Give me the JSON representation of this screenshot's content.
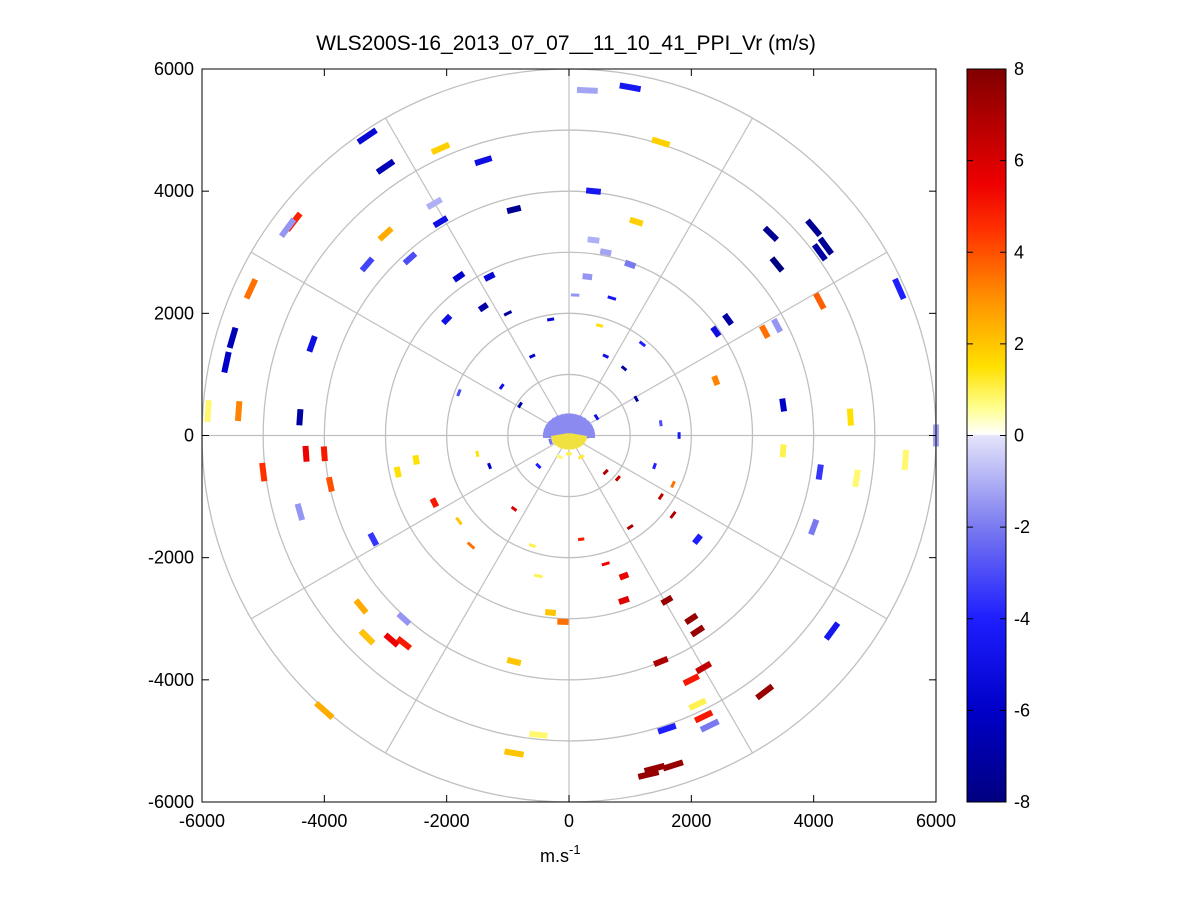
{
  "chart_data": {
    "type": "scatter",
    "subtype": "polar-ppi-radial-velocity",
    "title": "WLS200S-16_2013_07_07__11_10_41_PPI_Vr (m/s)",
    "xlabel_base": "m.s",
    "xlabel_exp": "-1",
    "ylabel": "",
    "xlim": [
      -6000,
      6000
    ],
    "ylim": [
      -6000,
      6000
    ],
    "xticks": [
      -6000,
      -4000,
      -2000,
      0,
      2000,
      4000,
      6000
    ],
    "yticks": [
      -6000,
      -4000,
      -2000,
      0,
      2000,
      4000,
      6000
    ],
    "x_tick_labels": [
      "-6000",
      "-4000",
      "-2000",
      "0",
      "2000",
      "4000",
      "6000"
    ],
    "y_tick_labels": [
      "-6000",
      "-4000",
      "-2000",
      "0",
      "2000",
      "4000",
      "6000"
    ],
    "range_rings": [
      1000,
      2000,
      3000,
      4000,
      5000,
      6000
    ],
    "spoke_angles_deg": [
      0,
      30,
      60,
      90,
      120,
      150,
      180,
      210,
      240,
      270,
      300,
      330
    ],
    "colorbar": {
      "min": -8,
      "max": 8,
      "ticks": [
        -8,
        -6,
        -4,
        -2,
        0,
        2,
        4,
        6,
        8
      ],
      "tick_labels": [
        "-8",
        "-6",
        "-4",
        "-2",
        "0",
        "2",
        "4",
        "6",
        "8"
      ],
      "colormap_stops": [
        {
          "v": -8,
          "color": "#000080"
        },
        {
          "v": -6,
          "color": "#0000c8"
        },
        {
          "v": -4,
          "color": "#1e1eff"
        },
        {
          "v": -2,
          "color": "#7a7af0"
        },
        {
          "v": 0,
          "color": "#e4e4fa"
        },
        {
          "v": 0.02,
          "color": "#ffffff"
        },
        {
          "v": 0.6,
          "color": "#ffff90"
        },
        {
          "v": 1.5,
          "color": "#ffe000"
        },
        {
          "v": 3,
          "color": "#ff9000"
        },
        {
          "v": 4.5,
          "color": "#ff3000"
        },
        {
          "v": 5.5,
          "color": "#ee0000"
        },
        {
          "v": 8,
          "color": "#800000"
        }
      ]
    },
    "points": [
      {
        "x": 300,
        "y": 5650,
        "v": -1.2
      },
      {
        "x": 1000,
        "y": 5700,
        "v": -4.5
      },
      {
        "x": 1500,
        "y": 4800,
        "v": 1.8
      },
      {
        "x": -3300,
        "y": 4900,
        "v": -5.5
      },
      {
        "x": -2100,
        "y": 4700,
        "v": 1.8
      },
      {
        "x": -3000,
        "y": 4400,
        "v": -6.5
      },
      {
        "x": -1400,
        "y": 4500,
        "v": -5.0
      },
      {
        "x": 400,
        "y": 4000,
        "v": -4.5
      },
      {
        "x": -2200,
        "y": 3800,
        "v": -1.0
      },
      {
        "x": -900,
        "y": 3700,
        "v": -7.5
      },
      {
        "x": -2100,
        "y": 3500,
        "v": -5.0
      },
      {
        "x": 1100,
        "y": 3500,
        "v": 1.8
      },
      {
        "x": -4500,
        "y": 3500,
        "v": 4.8
      },
      {
        "x": -4600,
        "y": 3400,
        "v": -1.5
      },
      {
        "x": -3000,
        "y": 3300,
        "v": 2.5
      },
      {
        "x": 4000,
        "y": 3400,
        "v": -7.5
      },
      {
        "x": 3300,
        "y": 3300,
        "v": -7.5
      },
      {
        "x": 4200,
        "y": 3100,
        "v": -7.5
      },
      {
        "x": 400,
        "y": 3200,
        "v": -1.0
      },
      {
        "x": 600,
        "y": 3000,
        "v": -1.2
      },
      {
        "x": -2600,
        "y": 2900,
        "v": -3.0
      },
      {
        "x": 4100,
        "y": 3000,
        "v": -7.0
      },
      {
        "x": 3400,
        "y": 2800,
        "v": -8.0
      },
      {
        "x": -3300,
        "y": 2800,
        "v": -3.2
      },
      {
        "x": 1000,
        "y": 2800,
        "v": -2.0
      },
      {
        "x": 300,
        "y": 2600,
        "v": -1.5
      },
      {
        "x": -1800,
        "y": 2600,
        "v": -5.8
      },
      {
        "x": -1300,
        "y": 2600,
        "v": -5.5
      },
      {
        "x": 100,
        "y": 2300,
        "v": -1.5
      },
      {
        "x": 700,
        "y": 2250,
        "v": -4.5
      },
      {
        "x": -5200,
        "y": 2400,
        "v": 3.5
      },
      {
        "x": 5400,
        "y": 2400,
        "v": -4.0
      },
      {
        "x": 4100,
        "y": 2200,
        "v": 3.8
      },
      {
        "x": 3400,
        "y": 1800,
        "v": -1.5
      },
      {
        "x": 3200,
        "y": 1700,
        "v": 3.5
      },
      {
        "x": 2600,
        "y": 1900,
        "v": -7.0
      },
      {
        "x": 2400,
        "y": 1700,
        "v": -5.0
      },
      {
        "x": -1400,
        "y": 2100,
        "v": -7.0
      },
      {
        "x": -1000,
        "y": 2000,
        "v": -7.0
      },
      {
        "x": -2000,
        "y": 1900,
        "v": -5.0
      },
      {
        "x": -5500,
        "y": 1600,
        "v": -6.5
      },
      {
        "x": -5600,
        "y": 1200,
        "v": -6.0
      },
      {
        "x": -4200,
        "y": 1500,
        "v": -5.0
      },
      {
        "x": 2400,
        "y": 900,
        "v": 3.2
      },
      {
        "x": 3500,
        "y": 500,
        "v": -6.0
      },
      {
        "x": 4600,
        "y": 300,
        "v": 1.5
      },
      {
        "x": -5900,
        "y": 400,
        "v": 0.8
      },
      {
        "x": -5400,
        "y": 400,
        "v": 3.2
      },
      {
        "x": -4400,
        "y": 300,
        "v": -7.0
      },
      {
        "x": 6000,
        "y": 0,
        "v": -1.2
      },
      {
        "x": 5500,
        "y": -400,
        "v": 0.8
      },
      {
        "x": 3500,
        "y": -250,
        "v": 1.0
      },
      {
        "x": 4700,
        "y": -700,
        "v": 0.8
      },
      {
        "x": 4100,
        "y": -600,
        "v": -3.5
      },
      {
        "x": -5000,
        "y": -600,
        "v": 4.5
      },
      {
        "x": -4300,
        "y": -300,
        "v": 5.5
      },
      {
        "x": -4000,
        "y": -300,
        "v": 5.0
      },
      {
        "x": -3900,
        "y": -800,
        "v": 4.0
      },
      {
        "x": -2800,
        "y": -600,
        "v": 1.5
      },
      {
        "x": -2500,
        "y": -400,
        "v": 1.5
      },
      {
        "x": -2200,
        "y": -1100,
        "v": 5.0
      },
      {
        "x": -4400,
        "y": -1250,
        "v": -1.5
      },
      {
        "x": -3200,
        "y": -1700,
        "v": -3.5
      },
      {
        "x": -1600,
        "y": -1800,
        "v": 3.5
      },
      {
        "x": 4000,
        "y": -1500,
        "v": -2.0
      },
      {
        "x": 2100,
        "y": -1700,
        "v": -4.0
      },
      {
        "x": 1700,
        "y": -1300,
        "v": 7.0
      },
      {
        "x": 1500,
        "y": -1000,
        "v": 6.5
      },
      {
        "x": -500,
        "y": -2300,
        "v": 1.0
      },
      {
        "x": 600,
        "y": -2100,
        "v": 5.5
      },
      {
        "x": 900,
        "y": -2300,
        "v": 5.5
      },
      {
        "x": 900,
        "y": -2700,
        "v": 5.8
      },
      {
        "x": -300,
        "y": -2900,
        "v": 2.0
      },
      {
        "x": -100,
        "y": -3050,
        "v": 3.5
      },
      {
        "x": 1600,
        "y": -2700,
        "v": 7.5
      },
      {
        "x": 2000,
        "y": -3000,
        "v": 7.5
      },
      {
        "x": 2100,
        "y": -3200,
        "v": 7.5
      },
      {
        "x": -3400,
        "y": -2800,
        "v": 2.5
      },
      {
        "x": -2700,
        "y": -3000,
        "v": -1.5
      },
      {
        "x": -3300,
        "y": -3300,
        "v": 5.5
      },
      {
        "x": -2900,
        "y": -3350,
        "v": 5.5
      },
      {
        "x": -3300,
        "y": -3300,
        "v": 2.0
      },
      {
        "x": -2700,
        "y": -3400,
        "v": 5.0
      },
      {
        "x": 4300,
        "y": -3200,
        "v": -4.5
      },
      {
        "x": 1500,
        "y": -3700,
        "v": 7.0
      },
      {
        "x": 2200,
        "y": -3800,
        "v": 6.5
      },
      {
        "x": 2000,
        "y": -4000,
        "v": 5.0
      },
      {
        "x": 3200,
        "y": -4200,
        "v": 7.5
      },
      {
        "x": 2100,
        "y": -4400,
        "v": 1.0
      },
      {
        "x": 2200,
        "y": -4600,
        "v": 5.0
      },
      {
        "x": 2300,
        "y": -4750,
        "v": -2.0
      },
      {
        "x": 1600,
        "y": -4800,
        "v": -4.0
      },
      {
        "x": -900,
        "y": -3700,
        "v": 2.0
      },
      {
        "x": -4000,
        "y": -4500,
        "v": 2.5
      },
      {
        "x": -500,
        "y": -4900,
        "v": 0.8
      },
      {
        "x": -900,
        "y": -5200,
        "v": 2.0
      },
      {
        "x": 1400,
        "y": -5450,
        "v": 7.5
      },
      {
        "x": 1700,
        "y": -5400,
        "v": 7.5
      },
      {
        "x": 1300,
        "y": -5550,
        "v": 7.5
      },
      {
        "x": -200,
        "y": 100,
        "v": -2.0
      },
      {
        "x": 100,
        "y": 200,
        "v": -1.5
      },
      {
        "x": 300,
        "y": 0,
        "v": -1.8
      },
      {
        "x": -300,
        "y": -100,
        "v": -2.2
      },
      {
        "x": 0,
        "y": -300,
        "v": 1.0
      },
      {
        "x": -150,
        "y": -350,
        "v": 0.8
      },
      {
        "x": 200,
        "y": -350,
        "v": 1.2
      },
      {
        "x": 450,
        "y": 300,
        "v": -5.0
      },
      {
        "x": -500,
        "y": -500,
        "v": -4.0
      },
      {
        "x": 600,
        "y": -600,
        "v": 7.0
      },
      {
        "x": 800,
        "y": -700,
        "v": 6.5
      },
      {
        "x": -800,
        "y": 500,
        "v": -7.0
      },
      {
        "x": -600,
        "y": 1300,
        "v": -6.0
      },
      {
        "x": 600,
        "y": 1300,
        "v": -5.0
      },
      {
        "x": 900,
        "y": 1100,
        "v": -7.0
      },
      {
        "x": 1100,
        "y": 600,
        "v": -7.0
      },
      {
        "x": -1100,
        "y": 800,
        "v": -5.0
      },
      {
        "x": -1500,
        "y": -300,
        "v": 1.5
      },
      {
        "x": -1300,
        "y": -500,
        "v": -6.0
      },
      {
        "x": 1400,
        "y": -500,
        "v": -4.0
      },
      {
        "x": 1800,
        "y": 0,
        "v": -4.5
      },
      {
        "x": 1500,
        "y": 200,
        "v": -3.0
      },
      {
        "x": -1800,
        "y": -1400,
        "v": 2.0
      },
      {
        "x": -600,
        "y": -1800,
        "v": 1.0
      },
      {
        "x": 200,
        "y": -1700,
        "v": 5.0
      },
      {
        "x": 500,
        "y": 1800,
        "v": 1.5
      },
      {
        "x": -300,
        "y": 1900,
        "v": -5.5
      },
      {
        "x": 1200,
        "y": 1500,
        "v": -4.0
      },
      {
        "x": -1800,
        "y": 700,
        "v": -3.0
      },
      {
        "x": 1700,
        "y": -800,
        "v": 3.5
      },
      {
        "x": -900,
        "y": -1200,
        "v": 6.0
      },
      {
        "x": 1000,
        "y": -1500,
        "v": 7.0
      }
    ]
  }
}
